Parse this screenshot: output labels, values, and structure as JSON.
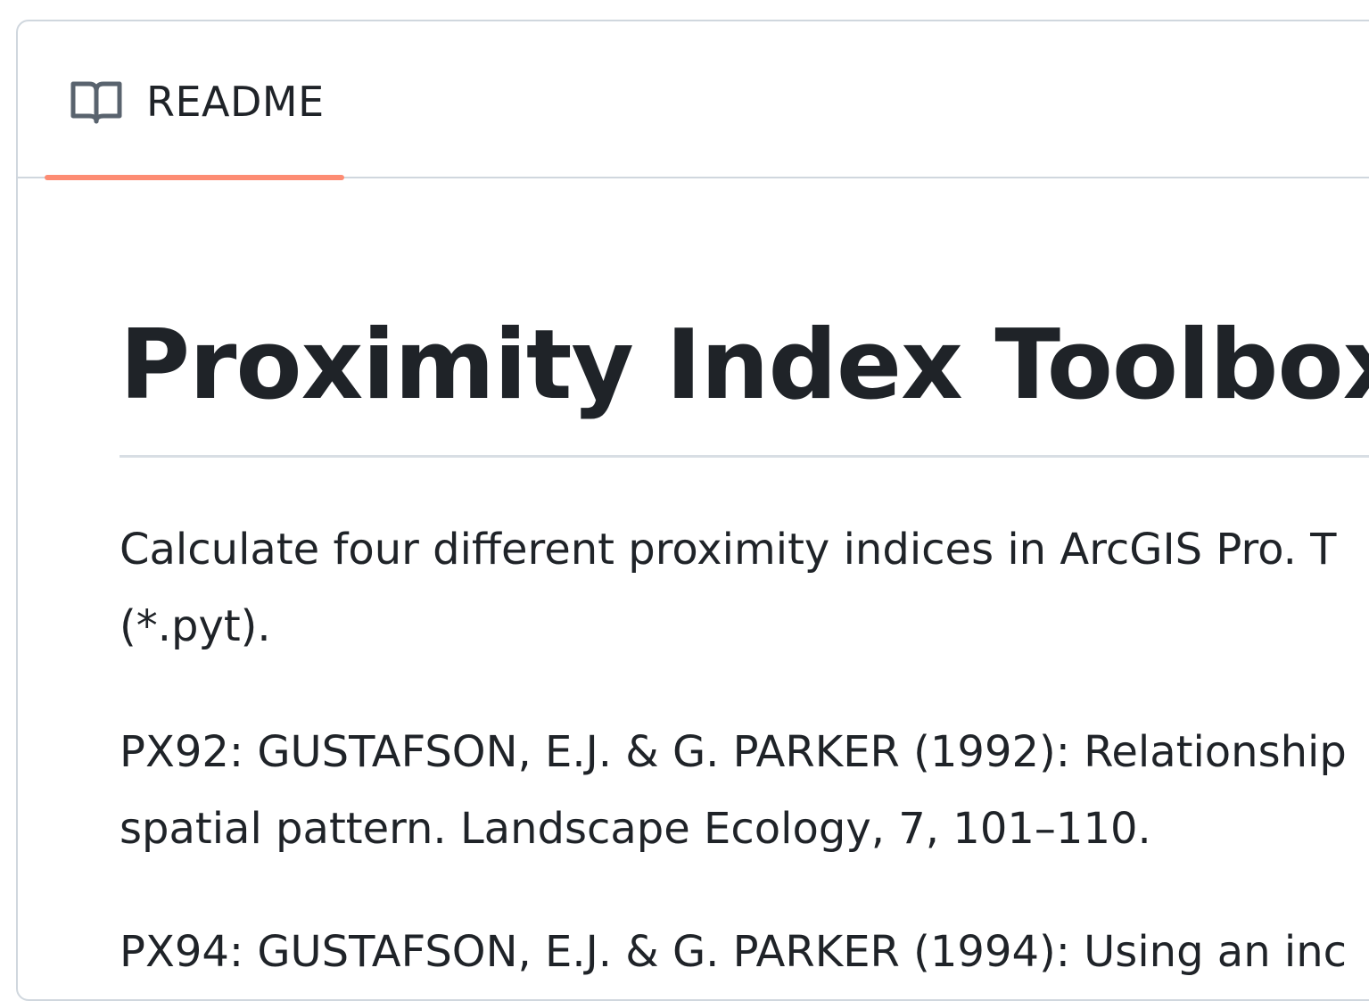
{
  "readme_tab": {
    "label": "README",
    "icon": "book-icon",
    "accent_color": "#fd8c73"
  },
  "readme": {
    "title": "Proximity Index Toolbox",
    "paragraphs": [
      {
        "line1": "Calculate four different proximity indices in ArcGIS Pro. T",
        "line2": "(*.pyt)."
      },
      {
        "line1": "PX92: GUSTAFSON, E.J. & G. PARKER (1992): Relationship",
        "line2": "spatial pattern. Landscape Ecology, 7, 101–110."
      },
      {
        "line1": "PX94: GUSTAFSON, E.J. & G. PARKER (1994): Using an inc",
        "line2": ""
      }
    ]
  }
}
